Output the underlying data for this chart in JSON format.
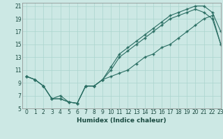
{
  "xlabel": "Humidex (Indice chaleur)",
  "bg_color": "#cce8e4",
  "line_color": "#2a6e63",
  "grid_color": "#aad4ce",
  "xlim": [
    -0.5,
    23
  ],
  "ylim": [
    5,
    21.5
  ],
  "xticks": [
    0,
    1,
    2,
    3,
    4,
    5,
    6,
    7,
    8,
    9,
    10,
    11,
    12,
    13,
    14,
    15,
    16,
    17,
    18,
    19,
    20,
    21,
    22,
    23
  ],
  "yticks": [
    5,
    7,
    9,
    11,
    13,
    15,
    17,
    19,
    21
  ],
  "line1_x": [
    0,
    1,
    2,
    3,
    4,
    5,
    6,
    7,
    8,
    9,
    10,
    11,
    12,
    13,
    14,
    15,
    16,
    17,
    18,
    19,
    20,
    21,
    22,
    23
  ],
  "line1_y": [
    10.0,
    9.5,
    8.5,
    6.5,
    6.5,
    6.0,
    5.8,
    8.5,
    8.5,
    9.5,
    11.5,
    13.5,
    14.5,
    15.5,
    16.5,
    17.5,
    18.5,
    19.5,
    20.0,
    20.5,
    21.0,
    21.0,
    20.0,
    17.0
  ],
  "line2_x": [
    0,
    1,
    2,
    3,
    4,
    5,
    6,
    7,
    8,
    9,
    10,
    11,
    12,
    13,
    14,
    15,
    16,
    17,
    18,
    19,
    20,
    21,
    22,
    23
  ],
  "line2_y": [
    10.0,
    9.5,
    8.5,
    6.5,
    6.5,
    6.0,
    5.8,
    8.5,
    8.5,
    9.5,
    11.0,
    13.0,
    14.0,
    15.0,
    16.0,
    17.0,
    18.0,
    19.0,
    19.5,
    20.0,
    20.5,
    20.0,
    19.0,
    15.0
  ],
  "line3_x": [
    0,
    1,
    2,
    3,
    4,
    5,
    6,
    7,
    8,
    9,
    10,
    11,
    12,
    13,
    14,
    15,
    16,
    17,
    18,
    19,
    20,
    21,
    22,
    23
  ],
  "line3_y": [
    10.0,
    9.5,
    8.5,
    6.5,
    7.0,
    6.0,
    5.8,
    8.5,
    8.5,
    9.5,
    10.0,
    10.5,
    11.0,
    12.0,
    13.0,
    13.5,
    14.5,
    15.0,
    16.0,
    17.0,
    18.0,
    19.0,
    19.5,
    15.0
  ]
}
